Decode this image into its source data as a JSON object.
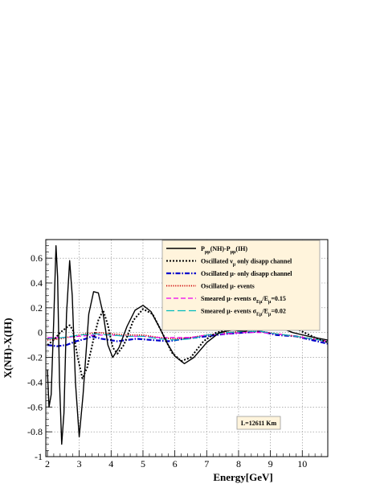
{
  "chart_data": {
    "type": "line",
    "xlabel": "Energy[GeV]",
    "ylabel": "X(NH)-X(IH)",
    "xlim": [
      1.95,
      10.8
    ],
    "ylim": [
      -1.0,
      0.75
    ],
    "xticks": [
      "2",
      "3",
      "4",
      "5",
      "6",
      "7",
      "8",
      "9",
      "10"
    ],
    "yticks": [
      "0.6",
      "0.4",
      "0.2",
      "0",
      "-0.2",
      "-0.4",
      "-0.6",
      "-0.8",
      "-1"
    ],
    "grid": true,
    "legend_placement": "top-right",
    "annotation": "L=12611 Km",
    "colors": {
      "solid": "#000000",
      "dotted_black": "#000000",
      "dashdot_blue": "#0000cc",
      "dotted_red": "#cc0000",
      "dashed_magenta": "#ee00ee",
      "longdash_cyan": "#00bbbb",
      "legend_bg": "#fff4dc"
    },
    "series": [
      {
        "label_main": "P",
        "label_sub1": "μμ",
        "label_mid": "(NH)-P",
        "label_sub2": "μμ",
        "label_end": "(IH)",
        "style": "solid",
        "points": [
          [
            2.0,
            -0.3
          ],
          [
            2.05,
            -0.6
          ],
          [
            2.12,
            -0.5
          ],
          [
            2.2,
            0.1
          ],
          [
            2.27,
            0.7
          ],
          [
            2.32,
            0.45
          ],
          [
            2.38,
            -0.4
          ],
          [
            2.45,
            -0.9
          ],
          [
            2.52,
            -0.65
          ],
          [
            2.6,
            0.15
          ],
          [
            2.7,
            0.58
          ],
          [
            2.78,
            0.3
          ],
          [
            2.88,
            -0.4
          ],
          [
            3.0,
            -0.84
          ],
          [
            3.12,
            -0.5
          ],
          [
            3.3,
            0.15
          ],
          [
            3.45,
            0.33
          ],
          [
            3.6,
            0.32
          ],
          [
            3.75,
            0.15
          ],
          [
            3.9,
            -0.1
          ],
          [
            4.05,
            -0.2
          ],
          [
            4.25,
            -0.12
          ],
          [
            4.5,
            0.05
          ],
          [
            4.75,
            0.18
          ],
          [
            5.0,
            0.22
          ],
          [
            5.25,
            0.17
          ],
          [
            5.5,
            0.05
          ],
          [
            5.75,
            -0.08
          ],
          [
            6.0,
            -0.19
          ],
          [
            6.3,
            -0.25
          ],
          [
            6.6,
            -0.2
          ],
          [
            7.0,
            -0.08
          ],
          [
            7.4,
            0.0
          ],
          [
            7.8,
            0.02
          ],
          [
            8.2,
            0.01
          ],
          [
            8.6,
            0.05
          ],
          [
            8.9,
            0.07
          ],
          [
            9.3,
            0.04
          ],
          [
            9.7,
            0.0
          ],
          [
            10.2,
            -0.03
          ],
          [
            10.8,
            -0.06
          ]
        ]
      },
      {
        "label_main": "Oscillated ν",
        "label_sub1": "μ",
        "label_end": " only disapp channel",
        "style": "dotted-black",
        "points": [
          [
            2.0,
            -0.1
          ],
          [
            2.2,
            -0.06
          ],
          [
            2.4,
            0.0
          ],
          [
            2.6,
            0.04
          ],
          [
            2.7,
            0.06
          ],
          [
            2.8,
            0.02
          ],
          [
            2.95,
            -0.2
          ],
          [
            3.1,
            -0.37
          ],
          [
            3.25,
            -0.28
          ],
          [
            3.45,
            -0.05
          ],
          [
            3.6,
            0.1
          ],
          [
            3.75,
            0.18
          ],
          [
            3.9,
            0.06
          ],
          [
            4.05,
            -0.12
          ],
          [
            4.2,
            -0.17
          ],
          [
            4.4,
            -0.1
          ],
          [
            4.7,
            0.1
          ],
          [
            5.0,
            0.19
          ],
          [
            5.3,
            0.15
          ],
          [
            5.6,
            0.0
          ],
          [
            5.9,
            -0.16
          ],
          [
            6.2,
            -0.23
          ],
          [
            6.5,
            -0.2
          ],
          [
            6.9,
            -0.07
          ],
          [
            7.3,
            0.0
          ],
          [
            7.8,
            0.03
          ],
          [
            8.3,
            0.04
          ],
          [
            8.9,
            0.09
          ],
          [
            9.4,
            0.06
          ],
          [
            9.9,
            0.02
          ],
          [
            10.4,
            -0.04
          ],
          [
            10.8,
            -0.08
          ]
        ]
      },
      {
        "label_main": "Oscillated μ- only disapp channel",
        "style": "dashdot-blue",
        "points": [
          [
            2.0,
            -0.1
          ],
          [
            2.3,
            -0.11
          ],
          [
            2.6,
            -0.1
          ],
          [
            2.9,
            -0.07
          ],
          [
            3.2,
            -0.05
          ],
          [
            3.4,
            -0.03
          ],
          [
            3.7,
            -0.05
          ],
          [
            4.2,
            -0.07
          ],
          [
            4.8,
            -0.05
          ],
          [
            5.3,
            -0.06
          ],
          [
            5.8,
            -0.07
          ],
          [
            6.3,
            -0.05
          ],
          [
            7.0,
            -0.03
          ],
          [
            7.6,
            -0.01
          ],
          [
            8.2,
            0.0
          ],
          [
            8.7,
            0.01
          ],
          [
            9.2,
            -0.02
          ],
          [
            9.8,
            -0.03
          ],
          [
            10.3,
            -0.06
          ],
          [
            10.8,
            -0.09
          ]
        ]
      },
      {
        "label_main": "Oscillated μ- events",
        "style": "dotted-red",
        "points": [
          [
            2.0,
            -0.06
          ],
          [
            2.4,
            -0.05
          ],
          [
            2.8,
            -0.03
          ],
          [
            3.2,
            -0.01
          ],
          [
            3.6,
            0.0
          ],
          [
            4.0,
            -0.01
          ],
          [
            4.5,
            -0.02
          ],
          [
            5.0,
            -0.02
          ],
          [
            5.5,
            -0.04
          ],
          [
            6.0,
            -0.05
          ],
          [
            6.5,
            -0.04
          ],
          [
            7.0,
            -0.02
          ],
          [
            7.6,
            0.0
          ],
          [
            8.2,
            0.01
          ],
          [
            8.7,
            0.01
          ],
          [
            9.2,
            -0.01
          ],
          [
            9.8,
            -0.03
          ],
          [
            10.3,
            -0.05
          ],
          [
            10.8,
            -0.07
          ]
        ]
      },
      {
        "label_main": "Smeared μ- events σ",
        "label_sub1": "Eμ",
        "label_mid": "/E",
        "label_sub2": "μ",
        "label_end": "=0.15",
        "style": "dashed-magenta",
        "points": [
          [
            2.0,
            -0.04
          ],
          [
            2.5,
            -0.04
          ],
          [
            3.0,
            -0.03
          ],
          [
            3.5,
            -0.02
          ],
          [
            4.0,
            -0.02
          ],
          [
            4.5,
            -0.03
          ],
          [
            5.0,
            -0.03
          ],
          [
            5.5,
            -0.04
          ],
          [
            6.0,
            -0.04
          ],
          [
            6.5,
            -0.04
          ],
          [
            7.0,
            -0.02
          ],
          [
            7.6,
            -0.01
          ],
          [
            8.2,
            0.0
          ],
          [
            8.7,
            0.0
          ],
          [
            9.2,
            -0.01
          ],
          [
            9.8,
            -0.03
          ],
          [
            10.3,
            -0.05
          ],
          [
            10.8,
            -0.07
          ]
        ]
      },
      {
        "label_main": "Smeared μ- events σ",
        "label_sub1": "Eμ",
        "label_mid": "/E",
        "label_sub2": "μ",
        "label_end": "=0.02",
        "style": "longdash-cyan",
        "points": [
          [
            2.0,
            -0.05
          ],
          [
            2.5,
            -0.04
          ],
          [
            3.0,
            -0.02
          ],
          [
            3.5,
            -0.01
          ],
          [
            4.0,
            -0.02
          ],
          [
            4.5,
            -0.03
          ],
          [
            5.0,
            -0.03
          ],
          [
            5.5,
            -0.05
          ],
          [
            6.0,
            -0.06
          ],
          [
            6.5,
            -0.05
          ],
          [
            7.0,
            -0.02
          ],
          [
            7.6,
            0.0
          ],
          [
            8.2,
            0.01
          ],
          [
            8.7,
            0.01
          ],
          [
            9.2,
            -0.01
          ],
          [
            9.8,
            -0.03
          ],
          [
            10.3,
            -0.05
          ],
          [
            10.8,
            -0.07
          ]
        ]
      }
    ]
  }
}
